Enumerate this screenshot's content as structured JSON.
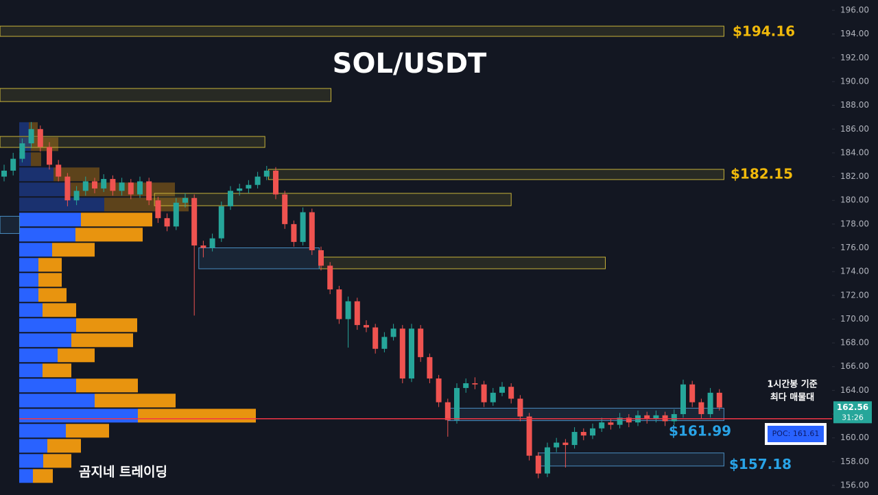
{
  "chart_data": {
    "type": "candlestick",
    "title": "SOL/USDT",
    "ylim": [
      155.19,
      196.87
    ],
    "yticks": [
      {
        "value": 196,
        "label": "196.00"
      },
      {
        "value": 194,
        "label": "194.00"
      },
      {
        "value": 192,
        "label": "192.00"
      },
      {
        "value": 190,
        "label": "190.00"
      },
      {
        "value": 188,
        "label": "188.00"
      },
      {
        "value": 186,
        "label": "186.00"
      },
      {
        "value": 184,
        "label": "184.00"
      },
      {
        "value": 182,
        "label": "182.00"
      },
      {
        "value": 180,
        "label": "180.00"
      },
      {
        "value": 178,
        "label": "178.00"
      },
      {
        "value": 176,
        "label": "176.00"
      },
      {
        "value": 174,
        "label": "174.00"
      },
      {
        "value": 172,
        "label": "172.00"
      },
      {
        "value": 170,
        "label": "170.00"
      },
      {
        "value": 168,
        "label": "168.00"
      },
      {
        "value": 166,
        "label": "166.00"
      },
      {
        "value": 164,
        "label": "164.00"
      },
      {
        "value": 162,
        "label": "162.00"
      },
      {
        "value": 160,
        "label": "160.00"
      },
      {
        "value": 158,
        "label": "158.00"
      },
      {
        "value": 156,
        "label": "156.00"
      }
    ],
    "up_color": "#26a69a",
    "down_color": "#ef5350",
    "open": [
      182.0,
      182.5,
      183.5,
      184.8,
      186.0,
      184.5,
      183.0,
      182.0,
      180.0,
      180.8,
      181.6,
      181.0,
      181.8,
      180.8,
      181.5,
      180.5,
      181.6,
      180.0,
      178.5,
      177.8,
      179.8,
      180.2,
      176.2,
      176.0,
      176.8,
      179.5,
      180.8,
      181.0,
      181.3,
      182.0,
      182.5,
      180.5,
      178.0,
      176.5,
      179.0,
      175.8,
      174.5,
      172.5,
      170.0,
      171.5,
      169.5,
      169.3,
      167.5,
      168.5,
      169.2,
      165.0,
      169.2,
      166.8,
      165.0,
      163.0,
      161.5,
      164.2,
      164.6,
      164.5,
      163.0,
      163.8,
      164.3,
      163.3,
      161.8,
      158.5,
      157.0,
      159.2,
      159.6,
      159.4,
      160.5,
      160.2,
      160.8,
      161.3,
      161.1,
      161.7,
      161.3,
      161.9,
      161.6,
      161.9,
      161.4,
      162.0,
      164.5,
      163.0,
      162.0,
      163.8
    ],
    "high": [
      183.0,
      184.0,
      185.2,
      186.6,
      186.3,
      184.9,
      183.4,
      182.3,
      181.2,
      182.0,
      181.9,
      182.2,
      182.1,
      181.9,
      181.8,
      182.0,
      181.9,
      180.3,
      178.9,
      180.2,
      180.6,
      180.5,
      176.6,
      177.2,
      179.9,
      181.2,
      181.4,
      181.7,
      182.4,
      182.9,
      182.8,
      180.8,
      178.3,
      179.4,
      179.3,
      176.1,
      174.8,
      172.8,
      171.9,
      171.8,
      169.9,
      169.6,
      168.9,
      169.6,
      169.5,
      169.6,
      169.5,
      167.1,
      165.3,
      163.3,
      164.6,
      165.0,
      165.1,
      164.8,
      164.2,
      164.7,
      164.6,
      163.6,
      162.1,
      158.8,
      159.6,
      160.0,
      159.9,
      160.9,
      160.8,
      161.2,
      161.7,
      161.6,
      162.1,
      162.0,
      162.3,
      162.2,
      162.3,
      162.2,
      162.4,
      164.9,
      164.8,
      163.3,
      164.2,
      164.1
    ],
    "low": [
      181.6,
      182.1,
      183.2,
      184.4,
      184.1,
      182.6,
      181.6,
      179.5,
      179.6,
      180.4,
      180.6,
      180.7,
      180.4,
      180.4,
      180.1,
      180.2,
      179.6,
      178.1,
      177.4,
      177.5,
      179.4,
      170.3,
      175.2,
      175.7,
      176.5,
      179.2,
      180.4,
      180.6,
      181.0,
      181.7,
      180.1,
      177.6,
      176.1,
      176.2,
      175.4,
      174.1,
      172.1,
      169.6,
      167.6,
      169.1,
      168.9,
      167.1,
      167.2,
      168.2,
      164.6,
      164.7,
      166.4,
      164.6,
      162.6,
      160.1,
      161.2,
      163.8,
      164.1,
      162.6,
      162.7,
      163.5,
      162.9,
      161.4,
      158.1,
      156.6,
      156.7,
      158.8,
      157.5,
      159.1,
      159.8,
      159.9,
      160.5,
      160.7,
      160.8,
      160.9,
      161.0,
      161.2,
      161.3,
      161.0,
      161.1,
      161.7,
      162.6,
      161.6,
      161.7,
      162.3
    ],
    "close": [
      182.5,
      183.5,
      184.8,
      186.0,
      184.5,
      183.0,
      182.0,
      180.0,
      180.8,
      181.6,
      181.0,
      181.8,
      180.8,
      181.5,
      180.5,
      181.6,
      180.0,
      178.5,
      177.8,
      179.8,
      180.2,
      176.2,
      176.0,
      176.8,
      179.5,
      180.8,
      181.0,
      181.3,
      182.0,
      182.5,
      180.5,
      178.0,
      176.5,
      179.0,
      175.8,
      174.5,
      172.5,
      170.0,
      171.5,
      169.5,
      169.3,
      167.5,
      168.5,
      169.2,
      165.0,
      169.2,
      166.8,
      165.0,
      163.0,
      161.5,
      164.2,
      164.6,
      164.5,
      163.0,
      163.8,
      164.3,
      163.3,
      161.8,
      158.5,
      157.0,
      159.2,
      159.6,
      159.4,
      160.5,
      160.2,
      160.8,
      161.3,
      161.1,
      161.7,
      161.3,
      161.9,
      161.6,
      161.9,
      161.4,
      162.0,
      164.5,
      163.0,
      162.0,
      163.8,
      162.56
    ],
    "zones": [
      {
        "top": 194.67,
        "bottom": 193.81,
        "start": -0.45,
        "end": 79.5,
        "color": "#c9b43a"
      },
      {
        "top": 189.42,
        "bottom": 188.32,
        "start": -0.45,
        "end": 36.1,
        "color": "#c9b43a"
      },
      {
        "top": 185.38,
        "bottom": 184.46,
        "start": -0.45,
        "end": 28.8,
        "color": "#c9b43a"
      },
      {
        "top": 182.61,
        "bottom": 181.75,
        "start": 29.2,
        "end": 79.5,
        "color": "#c9b43a"
      },
      {
        "top": 180.59,
        "bottom": 179.55,
        "start": 16.6,
        "end": 56,
        "color": "#c9b43a"
      },
      {
        "top": 175.22,
        "bottom": 174.24,
        "start": 34.8,
        "end": 66.4,
        "color": "#c9b43a"
      },
      {
        "top": 176.0,
        "bottom": 174.24,
        "start": 21.5,
        "end": 34.8,
        "color": "#4a8ec2"
      },
      {
        "top": 162.5,
        "bottom": 161.45,
        "start": 49,
        "end": 79.5,
        "color": "#4a8ec2"
      },
      {
        "top": 158.73,
        "bottom": 157.63,
        "start": 59,
        "end": 79.5,
        "color": "#4a8ec2"
      },
      {
        "top": 178.66,
        "bottom": 177.21,
        "start": -0.45,
        "end": 1.7,
        "color": "#4a8ec2"
      }
    ],
    "volume_profile": {
      "levels": [
        186.0,
        184.73,
        183.46,
        182.19,
        180.92,
        179.65,
        178.38,
        177.11,
        175.84,
        174.57,
        173.3,
        172.03,
        170.76,
        169.49,
        168.22,
        166.95,
        165.68,
        164.41,
        163.14,
        161.87,
        160.6,
        159.33,
        158.06,
        156.79
      ],
      "buy": [
        14,
        17,
        17,
        50,
        75,
        124,
        90,
        82,
        48,
        28,
        28,
        28,
        34,
        83,
        76,
        56,
        34,
        83,
        110,
        173,
        68,
        41,
        35,
        20
      ],
      "sell": [
        13,
        40,
        15,
        67,
        152,
        123,
        104,
        98,
        62,
        34,
        34,
        41,
        49,
        89,
        90,
        54,
        42,
        90,
        118,
        172,
        63,
        49,
        41,
        29
      ],
      "buy_color": "#2962ff",
      "sell_color": "#e8940f"
    },
    "poc": {
      "value": 161.61,
      "label": "POC: 161.61"
    },
    "last_price": 162.56,
    "timer": "31:26",
    "price_labels": [
      {
        "value": 194.16,
        "label": "$194.16",
        "color": "#f0b90b"
      },
      {
        "value": 182.15,
        "label": "$182.15",
        "color": "#f0b90b"
      },
      {
        "value": 161.99,
        "label": "$161.99",
        "color": "#29a3e6"
      },
      {
        "value": 157.18,
        "label": "$157.18",
        "color": "#29a3e6"
      }
    ],
    "note_lines": [
      "1시간봉 기준",
      "최다 매물대"
    ],
    "watermark": "곰지네 트레이딩"
  }
}
